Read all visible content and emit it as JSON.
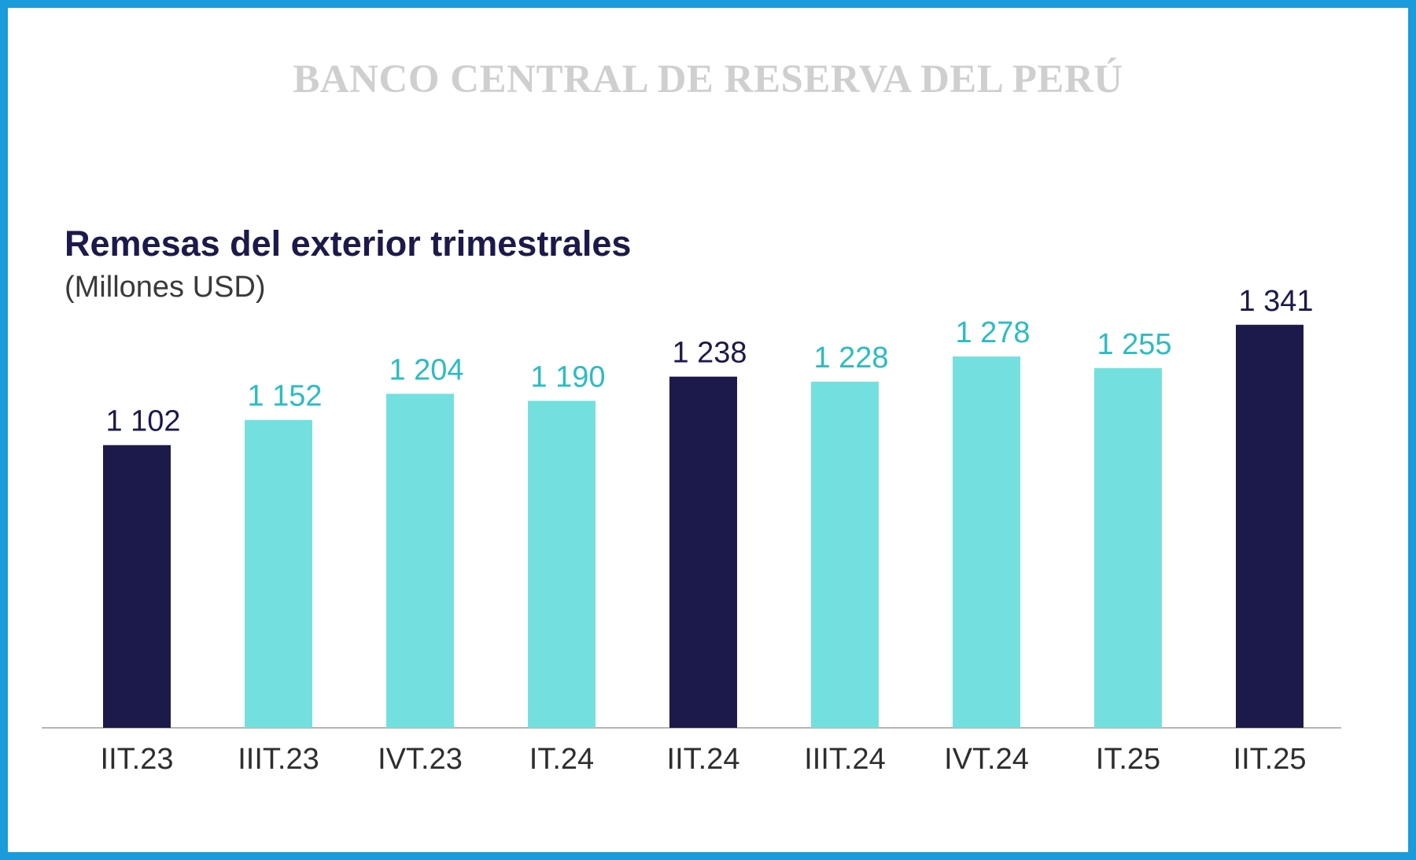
{
  "header": {
    "institution": "BANCO CENTRAL DE RESERVA DEL PERÚ"
  },
  "colors": {
    "border": "#1a9bdc",
    "dark_bar": "#1c1a4a",
    "light_bar": "#73e0df",
    "light_label": "#2bbcc4",
    "dark_label": "#1c1a4a"
  },
  "chart_data": {
    "type": "bar",
    "title": "Remesas del exterior trimestrales",
    "subtitle": "(Millones USD)",
    "categories": [
      "IIT.23",
      "IIIT.23",
      "IVT.23",
      "IT.24",
      "IIT.24",
      "IIIT.24",
      "IVT.24",
      "IT.25",
      "IIT.25"
    ],
    "values": [
      1102,
      1152,
      1204,
      1190,
      1238,
      1228,
      1278,
      1255,
      1341
    ],
    "value_labels": [
      "1 102",
      "1 152",
      "1 204",
      "1 190",
      "1 238",
      "1 228",
      "1 278",
      "1 255",
      "1 341"
    ],
    "highlighted": [
      true,
      false,
      false,
      false,
      true,
      false,
      false,
      false,
      true
    ],
    "grid": false,
    "legend": "none"
  }
}
